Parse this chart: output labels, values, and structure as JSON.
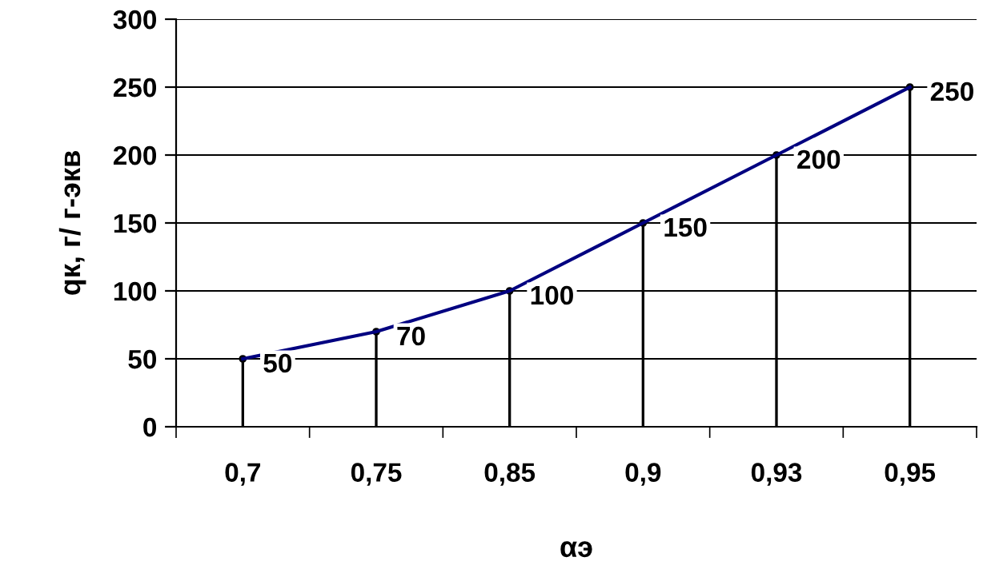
{
  "chart_data": {
    "type": "line",
    "xlabel": "αэ",
    "ylabel": "qк, г/ г-экв",
    "categories": [
      "0,7",
      "0,75",
      "0,85",
      "0,9",
      "0,93",
      "0,95"
    ],
    "series": [
      {
        "color": "#000080",
        "values": [
          50,
          70,
          100,
          150,
          200,
          250
        ],
        "value_labels": [
          "50",
          "70",
          "100",
          "150",
          "200",
          "250"
        ]
      },
      {
        "type": "lollipop",
        "color": "#000000",
        "values": [
          50,
          70,
          100,
          150,
          200,
          250
        ]
      }
    ],
    "ylim": [
      0,
      300
    ],
    "yticks": [
      0,
      50,
      100,
      150,
      200,
      250,
      300
    ],
    "grid": "y",
    "marker": "none",
    "line_style": "solid"
  }
}
